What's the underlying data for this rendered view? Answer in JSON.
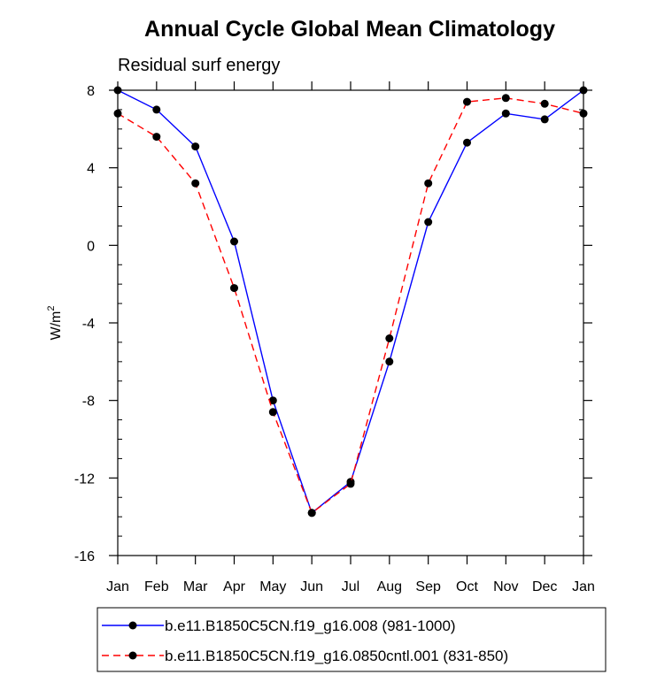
{
  "chart_data": {
    "type": "line",
    "title": "Annual Cycle Global Mean Climatology",
    "subtitle": "Residual surf energy",
    "ylabel": "W/m",
    "ylabel_superscript": "2",
    "xlabel": "",
    "ylim": [
      -16,
      8
    ],
    "yticks": [
      -16,
      -12,
      -8,
      -4,
      0,
      4,
      8
    ],
    "ytick_labels": [
      "-16",
      "-12",
      "-8",
      "-4",
      "0",
      "4",
      "8"
    ],
    "categories": [
      "Jan",
      "Feb",
      "Mar",
      "Apr",
      "May",
      "Jun",
      "Jul",
      "Aug",
      "Sep",
      "Oct",
      "Nov",
      "Dec",
      "Jan"
    ],
    "series": [
      {
        "name": "b.e11.B1850C5CN.f19_g16.008 (981-1000)",
        "color": "#0000ff",
        "dash": "solid",
        "values": [
          8.0,
          7.0,
          5.1,
          0.2,
          -8.0,
          -13.8,
          -12.2,
          -6.0,
          1.2,
          5.3,
          6.8,
          6.5,
          8.0
        ]
      },
      {
        "name": "b.e11.B1850C5CN.f19_g16.0850cntl.001 (831-850)",
        "color": "#ff0000",
        "dash": "dashed",
        "values": [
          6.8,
          5.6,
          3.2,
          -2.2,
          -8.6,
          -13.8,
          -12.3,
          -4.8,
          3.2,
          7.4,
          7.6,
          7.3,
          6.8
        ]
      }
    ],
    "legend": "bottom",
    "grid": false
  }
}
